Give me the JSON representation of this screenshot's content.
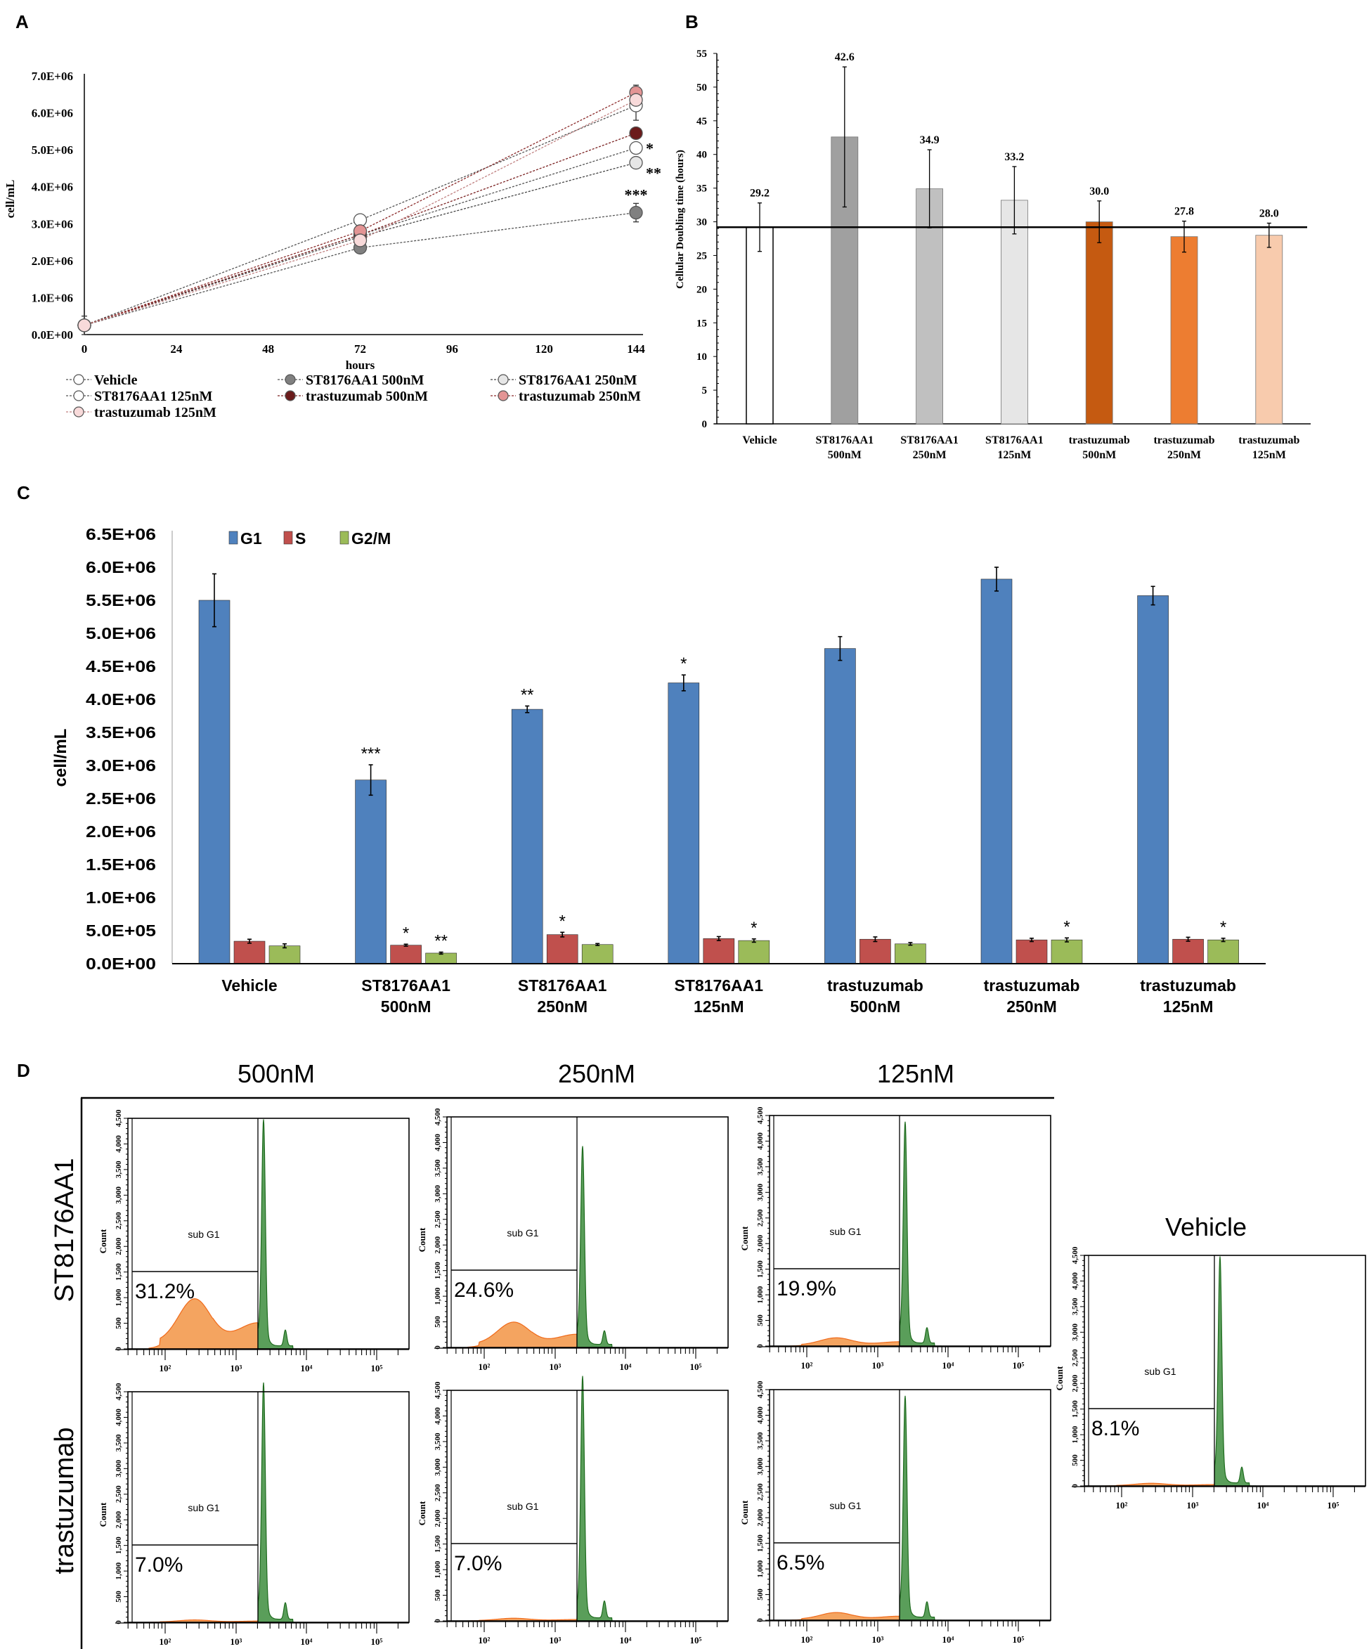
{
  "panel_labels": {
    "a": "A",
    "b": "B",
    "c": "C",
    "d": "D"
  },
  "chart_data": [
    {
      "panel": "A",
      "type": "line",
      "xlabel": "hours",
      "ylabel": "cell/mL",
      "x": [
        0,
        72,
        144
      ],
      "xlim": [
        0,
        144
      ],
      "xticks": [
        "0",
        "24",
        "48",
        "72",
        "96",
        "120",
        "144"
      ],
      "ylim": [
        0,
        7000000
      ],
      "yticks": [
        "0.0E+00",
        "1.0E+06",
        "2.0E+06",
        "3.0E+06",
        "4.0E+06",
        "5.0E+06",
        "6.0E+06",
        "7.0E+06"
      ],
      "grid": false,
      "legend_placement": "bottom",
      "series": [
        {
          "name": "Vehicle",
          "values": [
            250000,
            3100000,
            6200000
          ],
          "errors": [
            250000,
            150000,
            400000
          ],
          "fill": "#ffffff",
          "line": "#555555",
          "annotation": ""
        },
        {
          "name": "ST8176AA1 500nM",
          "values": [
            250000,
            2350000,
            3300000
          ],
          "errors": [
            0,
            150000,
            250000
          ],
          "fill": "#808080",
          "line": "#555555",
          "annotation": "***"
        },
        {
          "name": "ST8176AA1  250nM",
          "values": [
            250000,
            2650000,
            4650000
          ],
          "errors": [
            0,
            100000,
            80000
          ],
          "fill": "#e6e6e6",
          "line": "#444444",
          "annotation": "**"
        },
        {
          "name": "ST8176AA1  125nM",
          "values": [
            250000,
            2700000,
            5050000
          ],
          "errors": [
            0,
            100000,
            150000
          ],
          "fill": "#ffffff",
          "line": "#555555",
          "annotation": "*"
        },
        {
          "name": "trastuzumab 500nM",
          "values": [
            250000,
            2700000,
            5450000
          ],
          "errors": [
            0,
            100000,
            100000
          ],
          "fill": "#6b1b1b",
          "line": "#7a2020",
          "annotation": ""
        },
        {
          "name": "trastuzumab 250nM",
          "values": [
            250000,
            2800000,
            6550000
          ],
          "errors": [
            0,
            150000,
            200000
          ],
          "fill": "#e39494",
          "line": "#8b2a2a",
          "annotation": ""
        },
        {
          "name": "trastuzumab 125nM",
          "values": [
            250000,
            2550000,
            6350000
          ],
          "errors": [
            0,
            100000,
            150000
          ],
          "fill": "#f8dada",
          "line": "#c08080",
          "annotation": ""
        }
      ]
    },
    {
      "panel": "B",
      "type": "bar",
      "ylabel": "Cellular Doubling time (hours)",
      "categories": [
        [
          "Vehicle"
        ],
        [
          "ST8176AA1",
          "500nM"
        ],
        [
          "ST8176AA1",
          "250nM"
        ],
        [
          "ST8176AA1",
          "125nM"
        ],
        [
          "trastuzumab",
          "500nM"
        ],
        [
          "trastuzumab",
          "250nM"
        ],
        [
          "trastuzumab",
          "125nM"
        ]
      ],
      "values": [
        29.2,
        42.6,
        34.9,
        33.2,
        30.0,
        27.8,
        28.0
      ],
      "data_labels": [
        "29.2",
        "42.6",
        "34.9",
        "33.2",
        "30.0",
        "27.8",
        "28.0"
      ],
      "errors": [
        3.6,
        10.4,
        5.8,
        5.0,
        3.1,
        2.3,
        1.8
      ],
      "colors": [
        "#ffffff",
        "#a0a0a0",
        "#c0c0c0",
        "#e6e6e6",
        "#c55a11",
        "#ed7d31",
        "#f8cbad"
      ],
      "ylim": [
        0,
        55
      ],
      "yticks": [
        "0",
        "5",
        "10",
        "15",
        "20",
        "25",
        "30",
        "35",
        "40",
        "45",
        "50",
        "55"
      ],
      "reference_line": 29.2,
      "grid": false
    },
    {
      "panel": "C",
      "type": "bar",
      "ylabel": "cell/mL",
      "categories": [
        [
          "Vehicle"
        ],
        [
          "ST8176AA1",
          "500nM"
        ],
        [
          "ST8176AA1",
          "250nM"
        ],
        [
          "ST8176AA1",
          "125nM"
        ],
        [
          "trastuzumab",
          "500nM"
        ],
        [
          "trastuzumab",
          "250nM"
        ],
        [
          "trastuzumab",
          "125nM"
        ]
      ],
      "ylim": [
        0,
        6500000
      ],
      "yticks": [
        "0.0E+00",
        "5.0E+05",
        "1.0E+06",
        "1.5E+06",
        "2.0E+06",
        "2.5E+06",
        "3.0E+06",
        "3.5E+06",
        "4.0E+06",
        "4.5E+06",
        "5.0E+06",
        "5.5E+06",
        "6.0E+06",
        "6.5E+06"
      ],
      "legend_placement": "top-left",
      "grid": false,
      "series": [
        {
          "name": "G1",
          "color": "#4f81bd",
          "values": [
            5500000,
            2780000,
            3850000,
            4250000,
            4770000,
            5820000,
            5570000
          ],
          "errors": [
            400000,
            230000,
            50000,
            120000,
            180000,
            180000,
            140000
          ],
          "annotations": [
            "",
            "***",
            "**",
            "*",
            "",
            "",
            ""
          ]
        },
        {
          "name": "S",
          "color": "#c0504d",
          "values": [
            340000,
            280000,
            440000,
            380000,
            370000,
            360000,
            370000
          ],
          "errors": [
            30000,
            15000,
            35000,
            30000,
            35000,
            25000,
            30000
          ],
          "annotations": [
            "",
            "*",
            "*",
            "",
            "",
            "",
            ""
          ]
        },
        {
          "name": "G2/M",
          "color": "#9bbb59",
          "values": [
            270000,
            160000,
            290000,
            350000,
            300000,
            360000,
            360000
          ],
          "errors": [
            30000,
            15000,
            15000,
            25000,
            20000,
            30000,
            25000
          ],
          "annotations": [
            "",
            "**",
            "",
            "*",
            "",
            "*",
            "*"
          ]
        }
      ]
    }
  ],
  "flow": {
    "column_headers": [
      "500nM",
      "250nM",
      "125nM"
    ],
    "row_labels": [
      "ST8176AA1",
      "trastuzumab"
    ],
    "vehicle_title": "Vehicle",
    "gate_label": "sub G1",
    "y_axis_label": "Count",
    "yticks": [
      "0",
      "500",
      "1,000",
      "1,500",
      "2,000",
      "2,500",
      "3,000",
      "3,500",
      "4,000",
      "4,500"
    ],
    "xticks": [
      "10²",
      "10³",
      "10⁴",
      "10⁵"
    ],
    "subg1_color": "#f4a460",
    "g1_color": "#5a9e5a",
    "panels": [
      {
        "treatment": "ST8176AA1",
        "dose": "500nM",
        "sub_g1_percent": "31.2%"
      },
      {
        "treatment": "ST8176AA1",
        "dose": "250nM",
        "sub_g1_percent": "24.6%"
      },
      {
        "treatment": "ST8176AA1",
        "dose": "125nM",
        "sub_g1_percent": "19.9%"
      },
      {
        "treatment": "trastuzumab",
        "dose": "500nM",
        "sub_g1_percent": "7.0%"
      },
      {
        "treatment": "trastuzumab",
        "dose": "250nM",
        "sub_g1_percent": "7.0%"
      },
      {
        "treatment": "trastuzumab",
        "dose": "125nM",
        "sub_g1_percent": "6.5%"
      },
      {
        "treatment": "Vehicle",
        "dose": "",
        "sub_g1_percent": "8.1%"
      }
    ]
  }
}
